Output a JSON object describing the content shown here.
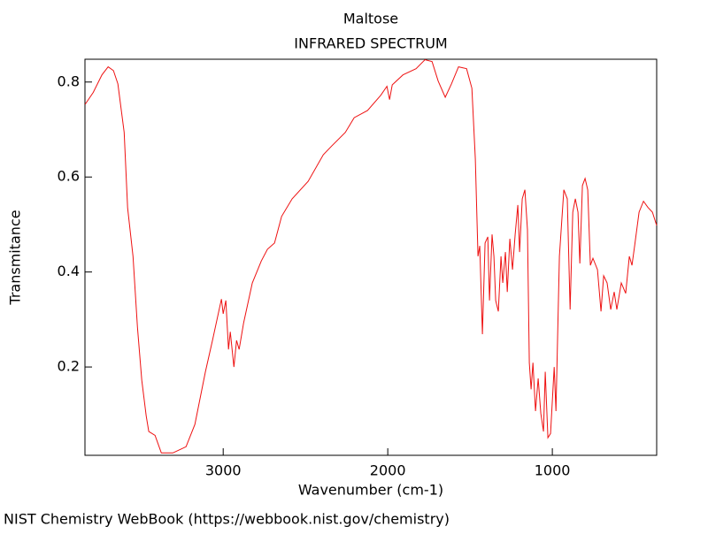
{
  "chart_data": {
    "type": "line",
    "title": "Maltose",
    "subtitle": "INFRARED SPECTRUM",
    "x_label": "Wavenumber (cm-1)",
    "y_label": "Transmitance",
    "source": "NIST Chemistry WebBook (https://webbook.nist.gov/chemistry)",
    "xlim": [
      3840,
      366
    ],
    "ylim": [
      0.014,
      0.848
    ],
    "xticks": [
      3000,
      2000,
      1000
    ],
    "yticks": [
      0.2,
      0.4,
      0.6,
      0.8
    ],
    "series": [
      {
        "name": "Maltose",
        "color": "#ee1111",
        "x": [
          3839,
          3790,
          3737,
          3699,
          3667,
          3640,
          3602,
          3581,
          3548,
          3521,
          3495,
          3468,
          3452,
          3414,
          3376,
          3306,
          3226,
          3172,
          3108,
          3065,
          3011,
          3000,
          2984,
          2968,
          2957,
          2935,
          2919,
          2903,
          2876,
          2823,
          2769,
          2731,
          2688,
          2645,
          2581,
          2484,
          2392,
          2339,
          2258,
          2204,
          2123,
          2043,
          2005,
          1989,
          1973,
          1908,
          1828,
          1774,
          1731,
          1694,
          1651,
          1613,
          1570,
          1521,
          1489,
          1468,
          1452,
          1441,
          1425,
          1409,
          1392,
          1382,
          1366,
          1355,
          1344,
          1328,
          1312,
          1301,
          1285,
          1274,
          1258,
          1242,
          1226,
          1210,
          1199,
          1183,
          1167,
          1151,
          1140,
          1129,
          1118,
          1102,
          1086,
          1070,
          1054,
          1043,
          1027,
          1011,
          989,
          978,
          957,
          930,
          909,
          892,
          876,
          860,
          844,
          833,
          817,
          801,
          785,
          769,
          753,
          726,
          704,
          688,
          667,
          645,
          624,
          608,
          581,
          554,
          532,
          516,
          500,
          473,
          446,
          419,
          392,
          366
        ],
        "values": [
          0.753,
          0.778,
          0.815,
          0.832,
          0.824,
          0.796,
          0.694,
          0.535,
          0.433,
          0.284,
          0.172,
          0.097,
          0.064,
          0.056,
          0.019,
          0.019,
          0.032,
          0.079,
          0.19,
          0.256,
          0.343,
          0.312,
          0.34,
          0.237,
          0.274,
          0.2,
          0.256,
          0.237,
          0.293,
          0.377,
          0.423,
          0.448,
          0.461,
          0.517,
          0.554,
          0.591,
          0.647,
          0.666,
          0.694,
          0.725,
          0.74,
          0.772,
          0.791,
          0.763,
          0.794,
          0.815,
          0.828,
          0.847,
          0.843,
          0.802,
          0.768,
          0.796,
          0.832,
          0.828,
          0.787,
          0.638,
          0.433,
          0.455,
          0.269,
          0.461,
          0.474,
          0.34,
          0.479,
          0.433,
          0.34,
          0.317,
          0.433,
          0.377,
          0.442,
          0.358,
          0.47,
          0.405,
          0.479,
          0.541,
          0.442,
          0.554,
          0.573,
          0.489,
          0.209,
          0.153,
          0.209,
          0.107,
          0.176,
          0.102,
          0.064,
          0.19,
          0.051,
          0.06,
          0.2,
          0.107,
          0.433,
          0.573,
          0.554,
          0.321,
          0.526,
          0.554,
          0.526,
          0.418,
          0.582,
          0.597,
          0.573,
          0.414,
          0.429,
          0.405,
          0.317,
          0.392,
          0.377,
          0.321,
          0.358,
          0.321,
          0.377,
          0.355,
          0.433,
          0.414,
          0.455,
          0.526,
          0.549,
          0.536,
          0.526,
          0.498
        ]
      }
    ]
  }
}
